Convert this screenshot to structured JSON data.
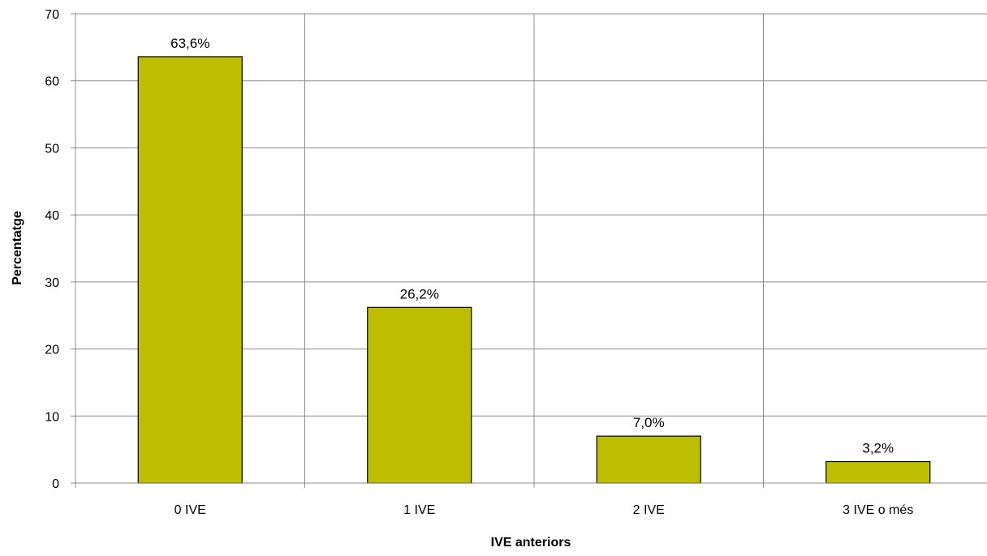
{
  "chart_data": {
    "type": "bar",
    "categories": [
      "0 IVE",
      "1 IVE",
      "2 IVE",
      "3 IVE o més"
    ],
    "values": [
      63.6,
      26.2,
      7.0,
      3.2
    ],
    "data_labels": [
      "63,6%",
      "26,2%",
      "7,0%",
      "3,2%"
    ],
    "title": "",
    "xlabel": "IVE anteriors",
    "ylabel": "Percentatge",
    "ylim": [
      0,
      70
    ],
    "yticks": [
      0,
      10,
      20,
      30,
      40,
      50,
      60,
      70
    ],
    "grid": true,
    "legend": "none",
    "colors": {
      "bar_fill": "#BDBE00",
      "bar_stroke": "#000000",
      "grid": "#8C8C8C",
      "axis": "#8C8C8C"
    }
  }
}
